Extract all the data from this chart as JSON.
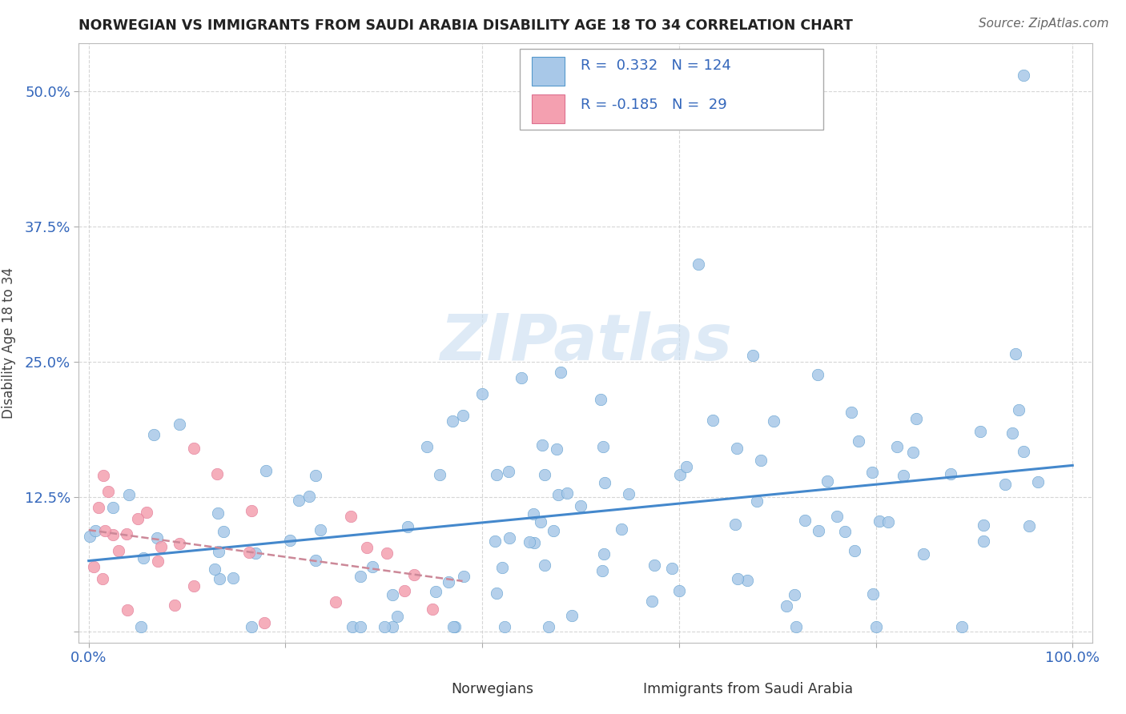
{
  "title": "NORWEGIAN VS IMMIGRANTS FROM SAUDI ARABIA DISABILITY AGE 18 TO 34 CORRELATION CHART",
  "source": "Source: ZipAtlas.com",
  "ylabel": "Disability Age 18 to 34",
  "x_ticks": [
    0.0,
    0.2,
    0.4,
    0.6,
    0.8,
    1.0
  ],
  "x_tick_labels": [
    "0.0%",
    "",
    "",
    "",
    "",
    "100.0%"
  ],
  "y_ticks": [
    0.0,
    0.125,
    0.25,
    0.375,
    0.5
  ],
  "y_tick_labels": [
    "",
    "12.5%",
    "25.0%",
    "37.5%",
    "50.0%"
  ],
  "r_norwegian": 0.332,
  "n_norwegian": 124,
  "r_immigrant": -0.185,
  "n_immigrant": 29,
  "norwegian_color": "#a8c8e8",
  "norwegian_edge_color": "#5599cc",
  "immigrant_color": "#f4a0b0",
  "immigrant_edge_color": "#dd7090",
  "norwegian_line_color": "#4488cc",
  "immigrant_line_color": "#cc8898",
  "watermark": "ZIPatlas",
  "watermark_color": "#c8ddf0",
  "title_color": "#222222",
  "source_color": "#666666",
  "ylabel_color": "#444444",
  "tick_color": "#3366bb",
  "grid_color": "#cccccc",
  "legend_border_color": "#aaaaaa",
  "xlim": [
    -0.01,
    1.02
  ],
  "ylim": [
    -0.01,
    0.545
  ]
}
